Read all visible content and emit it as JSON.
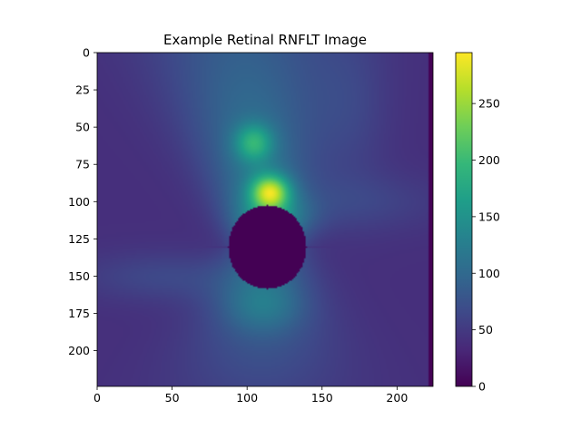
{
  "chart_data": {
    "type": "heatmap",
    "title": "Example Retinal RNFLT Image",
    "xlabel": "",
    "ylabel": "",
    "colormap": "viridis",
    "xlim": [
      0,
      224
    ],
    "ylim": [
      224,
      0
    ],
    "x_ticks": [
      "0",
      "50",
      "100",
      "150",
      "200"
    ],
    "y_ticks": [
      "0",
      "25",
      "50",
      "75",
      "100",
      "125",
      "150",
      "175",
      "200"
    ],
    "colorbar": {
      "range": [
        0,
        295
      ],
      "ticks": [
        "0",
        "50",
        "100",
        "150",
        "200",
        "250"
      ]
    },
    "features": {
      "optic_disc": {
        "center_x": 113,
        "center_y": 130,
        "radius_x": 26,
        "radius_y": 28,
        "value": 0
      },
      "hotspot_upper": {
        "center_x": 115,
        "center_y": 93,
        "value": 290
      },
      "hotspot_upper_secondary": {
        "center_x": 104,
        "center_y": 60,
        "value": 200
      },
      "background_value": 40,
      "right_edge_column_x": 221,
      "right_edge_value": 0
    },
    "grid": false,
    "legend": "none"
  },
  "colors": {
    "viridis": [
      "#440154",
      "#482878",
      "#3e4989",
      "#31688e",
      "#26828e",
      "#1f9e89",
      "#35b779",
      "#6ece58",
      "#b5de2b",
      "#fde725"
    ]
  }
}
